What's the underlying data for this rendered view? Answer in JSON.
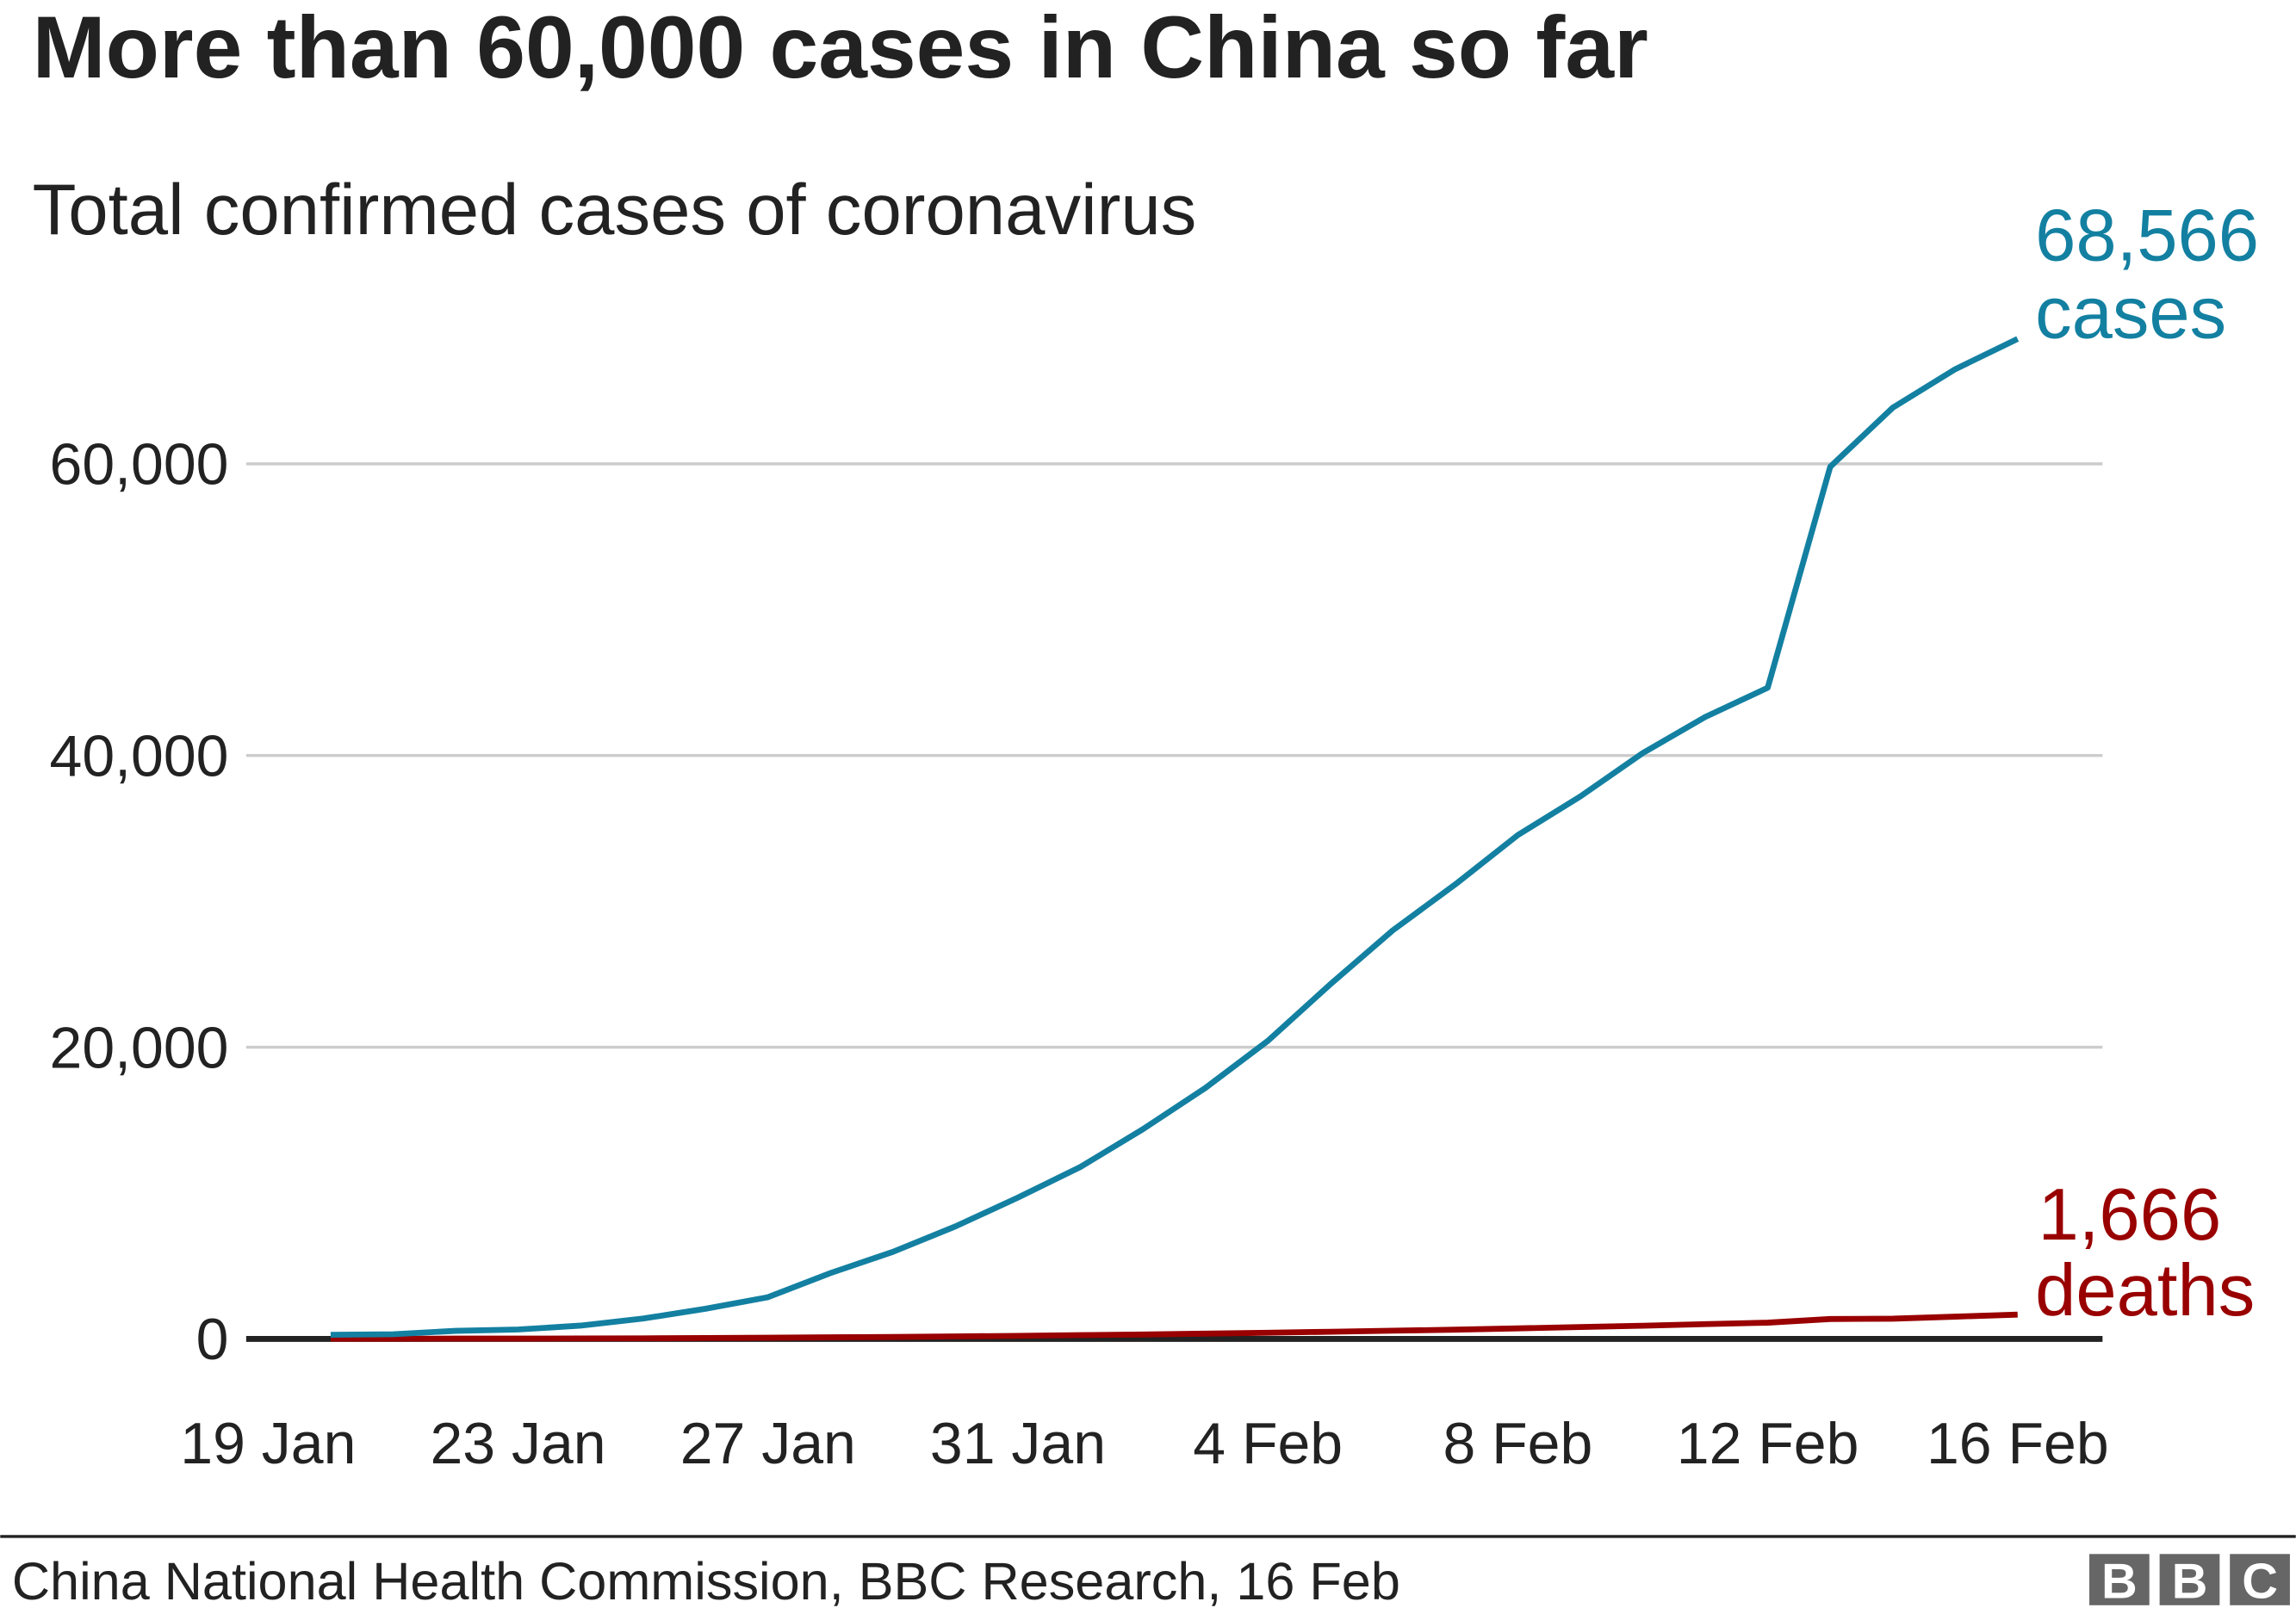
{
  "chart_data": {
    "type": "line",
    "title": "More than 60,000 cases in China so far",
    "subtitle": "Total confirmed cases of coronavirus",
    "xlabel": "",
    "ylabel": "",
    "ylim": [
      0,
      70000
    ],
    "yticks": [
      {
        "value": 0,
        "label": "0"
      },
      {
        "value": 20000,
        "label": "20,000"
      },
      {
        "value": 40000,
        "label": "40,000"
      },
      {
        "value": 60000,
        "label": "60,000"
      }
    ],
    "xticks": [
      "19 Jan",
      "23 Jan",
      "27 Jan",
      "31 Jan",
      "4 Feb",
      "8 Feb",
      "12 Feb",
      "16 Feb"
    ],
    "grid": true,
    "x": [
      "20 Jan",
      "21 Jan",
      "22 Jan",
      "23 Jan",
      "24 Jan",
      "25 Jan",
      "26 Jan",
      "27 Jan",
      "28 Jan",
      "29 Jan",
      "30 Jan",
      "31 Jan",
      "1 Feb",
      "2 Feb",
      "3 Feb",
      "4 Feb",
      "5 Feb",
      "6 Feb",
      "7 Feb",
      "8 Feb",
      "9 Feb",
      "10 Feb",
      "11 Feb",
      "12 Feb",
      "13 Feb",
      "14 Feb",
      "15 Feb",
      "16 Feb"
    ],
    "series": [
      {
        "name": "cases",
        "color": "#1380A1",
        "end_label_value": "68,566",
        "end_label_text": "cases",
        "values": [
          278,
          326,
          547,
          639,
          916,
          1399,
          2062,
          2863,
          4515,
          5974,
          7711,
          9692,
          11791,
          14380,
          17205,
          20438,
          24324,
          28018,
          31161,
          34546,
          37198,
          40171,
          42638,
          44653,
          59804,
          63851,
          66492,
          68566
        ]
      },
      {
        "name": "deaths",
        "color": "#990000",
        "end_label_value": "1,666",
        "end_label_text": "deaths",
        "values": [
          6,
          9,
          17,
          18,
          26,
          41,
          56,
          80,
          106,
          132,
          170,
          213,
          259,
          304,
          361,
          425,
          490,
          563,
          636,
          722,
          811,
          908,
          1016,
          1113,
          1367,
          1380,
          1523,
          1666
        ]
      }
    ]
  },
  "footer": {
    "source": "China National Health Commission, BBC Research, 16 Feb",
    "logo": "BBC",
    "logo_color": "#666666"
  }
}
